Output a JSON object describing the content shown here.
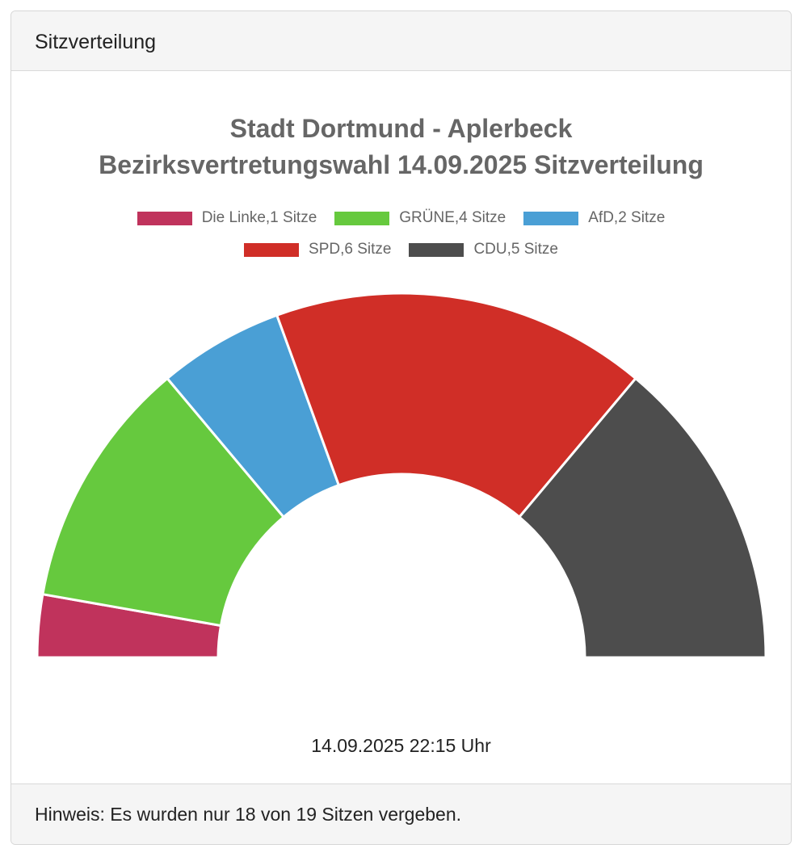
{
  "header": {
    "title": "Sitzverteilung"
  },
  "chart_data": {
    "type": "pie",
    "variant": "half-donut",
    "title_lines": [
      "Stadt Dortmund - Aplerbeck",
      "Bezirksvertretungswahl 14.09.2025 Sitzverteilung"
    ],
    "legend_position": "top",
    "categories": [
      "Die Linke",
      "GRÜNE",
      "AfD",
      "SPD",
      "CDU"
    ],
    "values": [
      1,
      4,
      2,
      6,
      5
    ],
    "legend_labels": [
      "Die Linke,1 Sitze",
      "GRÜNE,4 Sitze",
      "AfD,2 Sitze",
      "SPD,6 Sitze",
      "CDU,5 Sitze"
    ],
    "colors": [
      "#c0335c",
      "#66c93e",
      "#4a9fd5",
      "#d02e27",
      "#4d4d4d"
    ]
  },
  "timestamp": "14.09.2025 22:15 Uhr",
  "footer": {
    "note": "Hinweis: Es wurden nur 18 von 19 Sitzen vergeben."
  }
}
